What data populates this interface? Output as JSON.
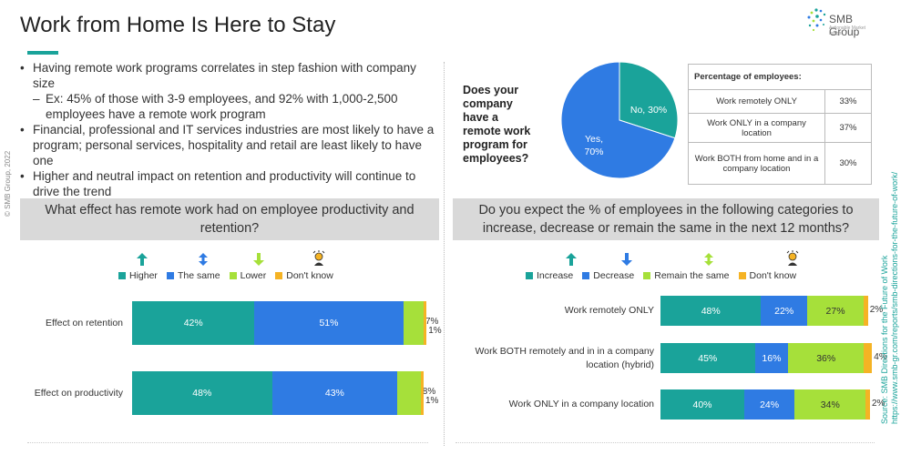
{
  "title": "Work from Home Is Here to Stay",
  "logo": {
    "name": "SMB Group",
    "tagline": "Actionable Market Insight"
  },
  "copyright": "© SMB Group, 2022",
  "bullets": [
    {
      "text": "Having remote work programs correlates in step fashion with company size",
      "subs": [
        "Ex: 45% of those with 3-9 employees, and 92% with 1,000-2,500 employees have a remote work program"
      ]
    },
    {
      "text": "Financial, professional and IT services industries are most likely to have a program; personal services, hospitality and retail are least likely to have one",
      "subs": []
    },
    {
      "text": "Higher and neutral impact on retention and productivity will continue to drive the trend",
      "subs": []
    }
  ],
  "pie_question": "Does your company have a remote work program for employees?",
  "table": {
    "header": "Percentage of employees:",
    "rows": [
      {
        "label": "Work remotely ONLY",
        "value": "33%"
      },
      {
        "label": "Work ONLY in a company location",
        "value": "37%"
      },
      {
        "label": "Work BOTH from home and in a company location",
        "value": "30%"
      }
    ]
  },
  "left_question": "What effect has remote work had on employee productivity and retention?",
  "right_question": "Do you expect the % of employees in the following categories to increase, decrease or remain the same in the next 12 months?",
  "source": {
    "line1": "Source: SMB Directions for the Future of Work",
    "line2": "https://www.smb-gr.com/reports/smb-directions-for-the-future-of-work/"
  },
  "colors": {
    "teal": "#1aa39a",
    "blue": "#2f7be3",
    "green": "#a6e03a",
    "orange": "#f5b324"
  },
  "chart_data": [
    {
      "type": "pie",
      "categories": [
        "No",
        "Yes"
      ],
      "values": [
        30,
        70
      ],
      "labels": [
        "No, 30%",
        "Yes, 70%"
      ],
      "colors": [
        "#1aa39a",
        "#2f7be3"
      ]
    },
    {
      "type": "bar",
      "stacked": true,
      "orientation": "horizontal",
      "categories": [
        "Effect on retention",
        "Effect on productivity"
      ],
      "series": [
        {
          "name": "Higher",
          "values": [
            42,
            48
          ],
          "color": "#1aa39a"
        },
        {
          "name": "The same",
          "values": [
            51,
            43
          ],
          "color": "#2f7be3"
        },
        {
          "name": "Lower",
          "values": [
            7,
            8
          ],
          "color": "#a6e03a"
        },
        {
          "name": "Don't know",
          "values": [
            1,
            1
          ],
          "color": "#f5b324"
        }
      ],
      "legend_position": "top"
    },
    {
      "type": "bar",
      "stacked": true,
      "orientation": "horizontal",
      "categories": [
        "Work remotely ONLY",
        "Work BOTH remotely and in in a company location (hybrid)",
        "Work ONLY in a company location"
      ],
      "series": [
        {
          "name": "Increase",
          "values": [
            48,
            45,
            40
          ],
          "color": "#1aa39a"
        },
        {
          "name": "Decrease",
          "values": [
            22,
            16,
            24
          ],
          "color": "#2f7be3"
        },
        {
          "name": "Remain the same",
          "values": [
            27,
            36,
            34
          ],
          "color": "#a6e03a"
        },
        {
          "name": "Don't know",
          "values": [
            2,
            4,
            2
          ],
          "color": "#f5b324"
        }
      ],
      "legend_position": "top"
    }
  ]
}
